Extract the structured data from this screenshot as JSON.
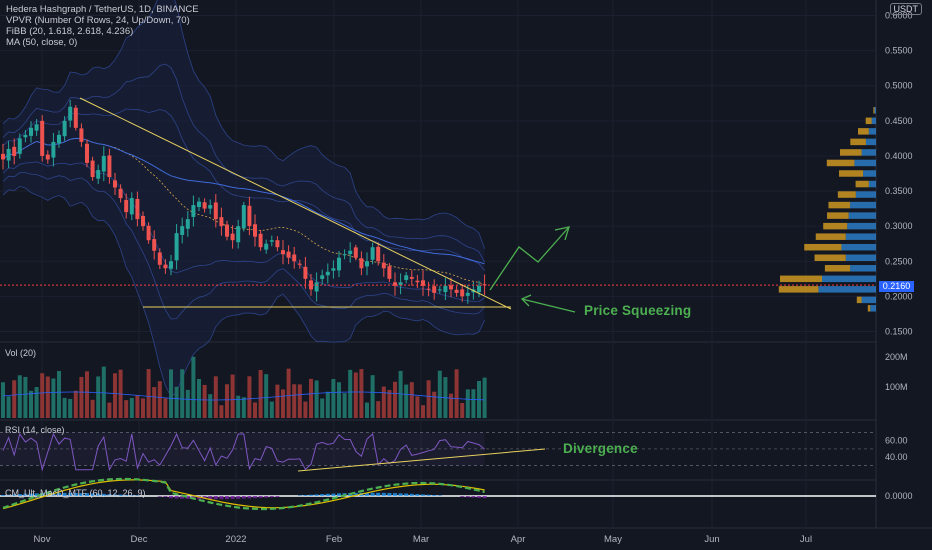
{
  "legend": {
    "title": "Hedera Hashgraph / TetherUS, 1D, BINANCE",
    "vpvr": "VPVR (Number Of Rows, 24, Up/Down, 70)",
    "fibb": "FiBB (20, 1.618, 2.618, 4.236)",
    "ma": "MA (50, close, 0)",
    "vol": "Vol (20)",
    "rsi": "RSI (14, close)",
    "macd": "CM_Ult_MacD_MTF (60, 12, 26, 9)"
  },
  "currency_badge": "USDT",
  "last_price_label": "0.2160",
  "annotations": {
    "squeeze": "Price Squeezing",
    "divergence": "Divergence"
  },
  "colors": {
    "background": "#131722",
    "up_candle": "#26a69a",
    "down_candle": "#ef5350",
    "trendline": "#e8d25f",
    "annotation_green": "#4caf50",
    "price_line": "#ff3d3d",
    "vpvr_up": "#2b7bc4",
    "vpvr_down": "#d9a022",
    "rsi_line": "#7e57c2",
    "band_line": "#3552a8"
  },
  "chart_data": {
    "type": "candlestick",
    "title": "Hedera Hashgraph / TetherUS, 1D, BINANCE",
    "x_tick_labels": [
      "Nov",
      "Dec",
      "2022",
      "Feb",
      "Mar",
      "Apr",
      "May",
      "Jun",
      "Jul"
    ],
    "price_axis": {
      "ticks": [
        "0.6000",
        "0.5500",
        "0.5000",
        "0.4500",
        "0.4000",
        "0.3500",
        "0.3000",
        "0.2500",
        "0.2000",
        "0.1500"
      ],
      "ylim": [
        0.135,
        0.605
      ],
      "last_price": 0.216
    },
    "price_series_approx": [
      0.395,
      0.41,
      0.4,
      0.425,
      0.43,
      0.44,
      0.445,
      0.4,
      0.395,
      0.42,
      0.43,
      0.45,
      0.47,
      0.44,
      0.42,
      0.39,
      0.37,
      0.38,
      0.4,
      0.37,
      0.355,
      0.34,
      0.32,
      0.34,
      0.31,
      0.3,
      0.28,
      0.265,
      0.245,
      0.24,
      0.25,
      0.29,
      0.3,
      0.31,
      0.33,
      0.335,
      0.325,
      0.33,
      0.31,
      0.3,
      0.285,
      0.28,
      0.3,
      0.33,
      0.3,
      0.285,
      0.27,
      0.275,
      0.28,
      0.27,
      0.26,
      0.255,
      0.25,
      0.245,
      0.225,
      0.21,
      0.22,
      0.23,
      0.235,
      0.24,
      0.255,
      0.26,
      0.265,
      0.255,
      0.24,
      0.25,
      0.27,
      0.25,
      0.24,
      0.225,
      0.215,
      0.22,
      0.23,
      0.225,
      0.22,
      0.215,
      0.21,
      0.205,
      0.21,
      0.215,
      0.21,
      0.205,
      0.2,
      0.205,
      0.21,
      0.215,
      0.216
    ],
    "volume_axis": {
      "ticks": [
        "200M",
        "100M"
      ]
    },
    "rsi_axis": {
      "ticks": [
        "60.00",
        "40.00"
      ],
      "bands": [
        70,
        30
      ]
    },
    "macd_axis": {
      "ticks": [
        "0.0000"
      ]
    },
    "vpvr_rows": [
      {
        "price": 0.465,
        "up": 2,
        "down": 2
      },
      {
        "price": 0.45,
        "up": 6,
        "down": 10
      },
      {
        "price": 0.435,
        "up": 10,
        "down": 18
      },
      {
        "price": 0.42,
        "up": 14,
        "down": 26
      },
      {
        "price": 0.405,
        "up": 20,
        "down": 36
      },
      {
        "price": 0.39,
        "up": 30,
        "down": 46
      },
      {
        "price": 0.375,
        "up": 18,
        "down": 40
      },
      {
        "price": 0.36,
        "up": 10,
        "down": 22
      },
      {
        "price": 0.345,
        "up": 28,
        "down": 30
      },
      {
        "price": 0.33,
        "up": 36,
        "down": 36
      },
      {
        "price": 0.315,
        "up": 38,
        "down": 36
      },
      {
        "price": 0.3,
        "up": 40,
        "down": 40
      },
      {
        "price": 0.285,
        "up": 42,
        "down": 50
      },
      {
        "price": 0.27,
        "up": 48,
        "down": 62
      },
      {
        "price": 0.255,
        "up": 42,
        "down": 52
      },
      {
        "price": 0.24,
        "up": 36,
        "down": 42
      },
      {
        "price": 0.225,
        "up": 75,
        "down": 70
      },
      {
        "price": 0.21,
        "up": 80,
        "down": 66
      },
      {
        "price": 0.195,
        "up": 20,
        "down": 8
      },
      {
        "price": 0.183,
        "up": 8,
        "down": 4
      }
    ]
  }
}
